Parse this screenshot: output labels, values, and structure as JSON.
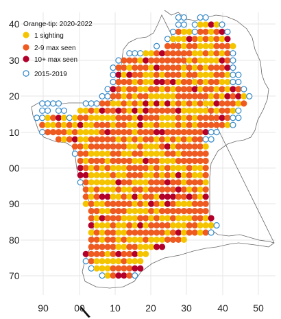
{
  "legend": {
    "title": "Orange-tip:  2020-2022",
    "items": [
      {
        "label": "1 sighting",
        "kind": "sighting1",
        "fill": "#f5c400"
      },
      {
        "label": "2-9 max seen",
        "kind": "sighting2_9",
        "fill": "#ee5a1f"
      },
      {
        "label": "10+ max seen",
        "kind": "sighting10p",
        "fill": "#b3002a"
      },
      {
        "label": "2015-2019",
        "kind": "ring",
        "stroke": "#2f86c8"
      }
    ]
  },
  "axes": {
    "x_ticks": [
      "90",
      "00",
      "10",
      "20",
      "30",
      "40",
      "50"
    ],
    "y_ticks": [
      "40",
      "30",
      "20",
      "10",
      "00",
      "90",
      "80",
      "70"
    ],
    "grid": true
  },
  "colors": {
    "sighting1": "#f5c400",
    "sighting2_9": "#ee5a1f",
    "sighting10p": "#b3002a",
    "ring": "#2f86c8",
    "outline": "#666666",
    "grid": "#e6e6e6"
  },
  "map_rows": [
    "                                                  ",
    "                                ..  ..            ",
    "                                .. .OOXO.         ",
    "                               .OOO.OOOOX.        ",
    "                              .OOOOOOOOOOO        ",
    "                            . OOOOOOOOOOOOO       ",
    "                       ...OOOXOOOOOOOOOOOO.       ",
    "                     .OOOOXOOOOOOOOOOOOOOO.       ",
    "                    .OOOOOOOXOOOOOOOOOOOOO.       ",
    "                    .OOXOOOOOOOOOOOOOOOOOO..      ",
    "                   ..OOOOOOOXXOOOOOOOOOOOO..      ",
    "                   .OOOOOOOOOOOOOOOOOOOOOOOO.     ",
    "                  ..OOOOOOOOOOOOOOOOOOOOOOOXO.    ",
    "       ....    ...OOOOOOOOOOOOOOOOOOOOOOOOOOO     ",
    "       .. ..  OOOOOOOOOOOOOOOOOOOOOOOOOOOOO.     ",
    "      ..OOXO.OOOOOOOOOOOOXOOOOOOOOOOOOOOOO..     ",
    "       OOOOOOOOOOOOOOOOOOXOOOOOOOOOOOOOOOO.      ",
    "       .OOOOOOOOOOOOOOOOOOOOOOOOOOOOOX..         ",
    "          OOOOOOOOOOOOOOOOOOOOOOOOOOO..          ",
    "             OOOOOOOOOOOOOOOOOOOOOOOOO           ",
    "             .OOOOOOOOOOOOOOOOOOOOOOOO           ",
    "              OOOOOOOOOOOOXOOOOOOOOOOO           ",
    "              XOOOOOOOOOOOOOOOOOOOOOOO           ",
    "              XXOOOOOOOOOOOOOOOOOOOOOO           ",
    "              .OOOOOOOOOOOOOOOOOOOOOOO           ",
    "               OOOOOOOOOOOOOOOOOOOOOOO           ",
    "               OOOOOOOOOOOOOOOOOOOOOOO           ",
    "               OOOOOOOOOOOOOOOOOOOOOOO           ",
    "                OOOOOOOOOOOOOOOOOOOOOO           ",
    "                OOOOOOOOOOOOOOOOOOOOOOX          ",
    "                XOOOOOOOOOOOOOOOOOOOOOO.         ",
    "                OOOOOOOOOOOOOOOOOOOOOO.          ",
    "                OOOOOOOOOOOOOOOOOO               ",
    "                OOOOOOOOOOOOOO                   ",
    "               XOOOOOOOOOOO                     ",
    "               .OOOOOOOOOO                      ",
    "                .OOOOOOOOX                      ",
    "                  .OOOOO.                       ",
    "                                                "
  ]
}
